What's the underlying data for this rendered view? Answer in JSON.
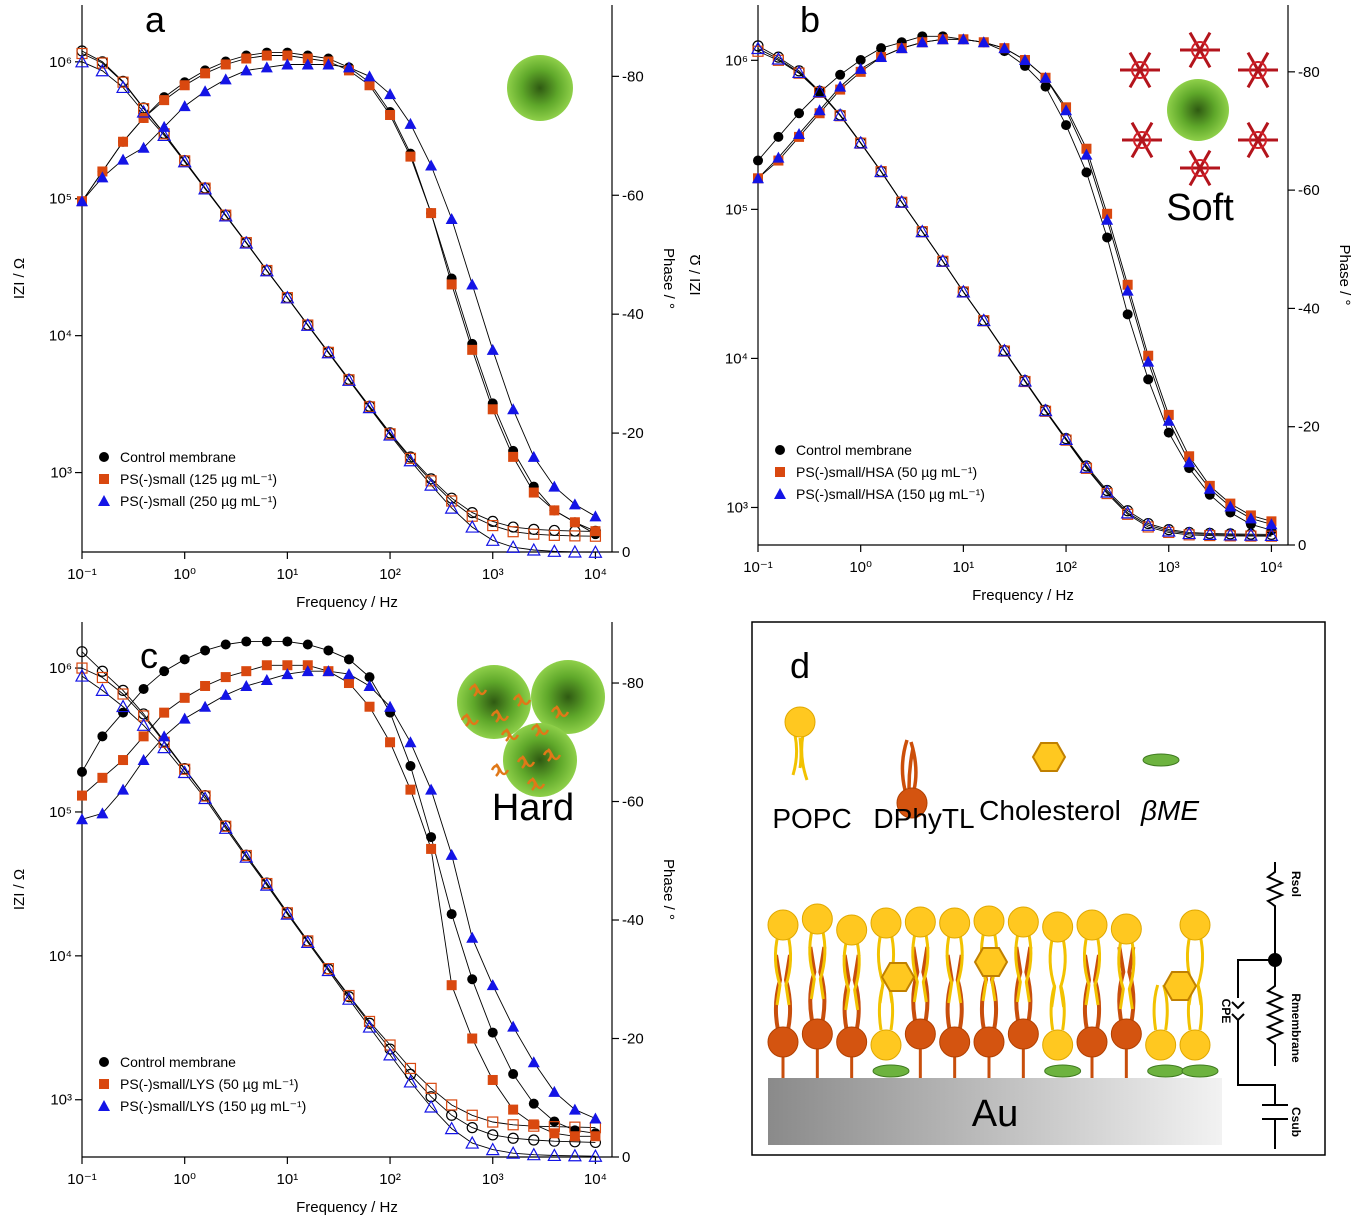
{
  "chart_data": [
    {
      "type": "line",
      "panel_label": "a",
      "xlabel": "Frequency / Hz",
      "ylabel": "IZI / Ω",
      "y2label": "Phase / °",
      "xscale": "log",
      "yscale": "log",
      "legend": "lower left",
      "x": [
        0.1,
        0.158,
        0.251,
        0.398,
        0.631,
        1,
        1.58,
        2.51,
        3.98,
        6.31,
        10,
        15.8,
        25.1,
        39.8,
        63.1,
        100,
        158,
        251,
        398,
        631,
        1000,
        1580,
        2510,
        3980,
        6310,
        10000
      ],
      "xlim": [
        0.1,
        14500
      ],
      "xticks": [
        {
          "value": 0.1,
          "label": "10⁻¹"
        },
        {
          "value": 1,
          "label": "10⁰"
        },
        {
          "value": 10,
          "label": "10¹"
        },
        {
          "value": 100,
          "label": "10²"
        },
        {
          "value": 1000,
          "label": "10³"
        },
        {
          "value": 10000,
          "label": "10⁴"
        }
      ],
      "ylim": [
        263,
        2600000
      ],
      "yticks": [
        {
          "value": 1000,
          "label": "10³"
        },
        {
          "value": 10000,
          "label": "10⁴"
        },
        {
          "value": 100000,
          "label": "10⁵"
        },
        {
          "value": 1000000,
          "label": "10⁶"
        }
      ],
      "y2lim": [
        0,
        -92
      ],
      "y2ticks": [
        0,
        -20,
        -40,
        -60,
        -80
      ],
      "series": [
        {
          "name": "Control membrane",
          "color": "#000000",
          "marker": "circle",
          "magnitude": [
            1200000,
            1000000,
            720000,
            460000,
            300000,
            190000,
            120000,
            76000,
            48000,
            30000,
            19000,
            12000,
            7600,
            4800,
            3050,
            1950,
            1300,
            900,
            650,
            510,
            440,
            400,
            385,
            378,
            374,
            372
          ],
          "phase": [
            -59,
            -64,
            -69,
            -73,
            -76.5,
            -79,
            -81,
            -82.5,
            -83.5,
            -84,
            -84,
            -83.5,
            -83,
            -81.5,
            -79,
            -74,
            -67,
            -57,
            -46,
            -35,
            -25,
            -17,
            -11,
            -7,
            -5,
            -3
          ]
        },
        {
          "name": "PS(-)small (125 µg mL⁻¹)",
          "color": "#d9480f",
          "marker": "square",
          "magnitude": [
            1150000,
            980000,
            710000,
            455000,
            298000,
            189000,
            119500,
            75800,
            47800,
            29900,
            18950,
            11950,
            7550,
            4760,
            3020,
            1920,
            1270,
            870,
            620,
            480,
            410,
            370,
            355,
            348,
            345,
            343
          ],
          "phase": [
            -59,
            -64,
            -69,
            -73,
            -76,
            -78.5,
            -80.5,
            -82,
            -83,
            -83.5,
            -83.5,
            -83,
            -82.5,
            -81,
            -78.5,
            -73.5,
            -66.5,
            -57,
            -45,
            -34,
            -24,
            -16,
            -10,
            -7,
            -5,
            -3.5
          ]
        },
        {
          "name": "PS(-)small (250 µg mL⁻¹)",
          "color": "#1414e6",
          "marker": "triangle",
          "magnitude": [
            1000000,
            860000,
            650000,
            430000,
            290000,
            186000,
            118000,
            75000,
            47500,
            29800,
            18900,
            11900,
            7500,
            4720,
            2980,
            1880,
            1220,
            810,
            550,
            400,
            320,
            285,
            272,
            266,
            263,
            262
          ],
          "phase": [
            -59,
            -63,
            -66,
            -68,
            -71.5,
            -75,
            -77.5,
            -79.5,
            -81,
            -81.5,
            -82,
            -82,
            -82,
            -81.5,
            -80,
            -77,
            -72,
            -65,
            -56,
            -45,
            -34,
            -24,
            -16,
            -11,
            -8,
            -6
          ]
        }
      ]
    },
    {
      "type": "line",
      "panel_label": "b",
      "annotation": "Soft",
      "xlabel": "Frequency / Hz",
      "ylabel": "IZI / Ω",
      "y2label": "Phase / °",
      "xscale": "log",
      "yscale": "log",
      "legend": "lower left",
      "x": [
        0.1,
        0.158,
        0.251,
        0.398,
        0.631,
        1,
        1.58,
        2.51,
        3.98,
        6.31,
        10,
        15.8,
        25.1,
        39.8,
        63.1,
        100,
        158,
        251,
        398,
        631,
        1000,
        1580,
        2510,
        3980,
        6310,
        10000
      ],
      "xlim": [
        0.1,
        14500
      ],
      "xticks": [
        {
          "value": 0.1,
          "label": "10⁻¹"
        },
        {
          "value": 1,
          "label": "10⁰"
        },
        {
          "value": 10,
          "label": "10¹"
        },
        {
          "value": 100,
          "label": "10²"
        },
        {
          "value": 1000,
          "label": "10³"
        },
        {
          "value": 10000,
          "label": "10⁴"
        }
      ],
      "ylim": [
        560,
        2350000
      ],
      "yticks": [
        {
          "value": 1000,
          "label": "10³"
        },
        {
          "value": 10000,
          "label": "10⁴"
        },
        {
          "value": 100000,
          "label": "10⁵"
        },
        {
          "value": 1000000,
          "label": "10⁶"
        }
      ],
      "y2lim": [
        0,
        -91.3
      ],
      "y2ticks": [
        0,
        -20,
        -40,
        -60,
        -80
      ],
      "series": [
        {
          "name": "Control membrane",
          "color": "#000000",
          "marker": "circle",
          "magnitude": [
            1250000,
            1050000,
            850000,
            620000,
            430000,
            280000,
            180000,
            112000,
            71000,
            45000,
            28000,
            18000,
            11300,
            7100,
            4500,
            2900,
            1900,
            1300,
            950,
            780,
            710,
            680,
            670,
            665,
            662,
            660
          ],
          "phase": [
            -65,
            -69,
            -73,
            -76.5,
            -79.5,
            -82,
            -84,
            -85,
            -86,
            -86,
            -85.5,
            -85,
            -83.5,
            -81,
            -77.5,
            -71,
            -63,
            -52,
            -39,
            -28,
            -19,
            -13,
            -8.5,
            -5.5,
            -3.5,
            -2.5
          ]
        },
        {
          "name": "PS(-)small/HSA (50 µg mL⁻¹)",
          "color": "#d9480f",
          "marker": "square",
          "magnitude": [
            1150000,
            1000000,
            820000,
            610000,
            425000,
            278000,
            179000,
            111500,
            70800,
            44800,
            27900,
            17900,
            11200,
            7000,
            4420,
            2830,
            1830,
            1240,
            900,
            740,
            680,
            655,
            648,
            645,
            643,
            642
          ],
          "phase": [
            -62,
            -65,
            -69,
            -73,
            -77,
            -80,
            -82.5,
            -84,
            -85,
            -85.5,
            -85.5,
            -85,
            -84,
            -82,
            -79,
            -74,
            -67,
            -56,
            -44,
            -32,
            -22,
            -15,
            -10,
            -7,
            -5,
            -4
          ]
        },
        {
          "name": "PS(-)small/HSA (150 µg mL⁻¹)",
          "color": "#1414e6",
          "marker": "triangle",
          "magnitude": [
            1200000,
            1020000,
            830000,
            615000,
            428000,
            279000,
            179500,
            111800,
            70900,
            44900,
            27950,
            17950,
            11250,
            7050,
            4460,
            2860,
            1860,
            1270,
            920,
            760,
            695,
            668,
            660,
            655,
            652,
            650
          ],
          "phase": [
            -62,
            -65.5,
            -69.5,
            -73.5,
            -77.5,
            -80.5,
            -82.5,
            -84,
            -85,
            -85.5,
            -85.5,
            -85,
            -84,
            -82,
            -79,
            -73.5,
            -66,
            -55,
            -43,
            -31,
            -21,
            -14,
            -9.5,
            -6.5,
            -4.5,
            -3.5
          ]
        }
      ]
    },
    {
      "type": "line",
      "panel_label": "c",
      "annotation": "Hard",
      "xlabel": "Frequency / Hz",
      "ylabel": "IZI / Ω",
      "y2label": "Phase / °",
      "xscale": "log",
      "yscale": "log",
      "legend": "lower left",
      "x": [
        0.1,
        0.158,
        0.251,
        0.398,
        0.631,
        1,
        1.58,
        2.51,
        3.98,
        6.31,
        10,
        15.8,
        25.1,
        39.8,
        63.1,
        100,
        158,
        251,
        398,
        631,
        1000,
        1580,
        2510,
        3980,
        6310,
        10000
      ],
      "xlim": [
        0.1,
        14500
      ],
      "xticks": [
        {
          "value": 0.1,
          "label": "10⁻¹"
        },
        {
          "value": 1,
          "label": "10⁰"
        },
        {
          "value": 10,
          "label": "10¹"
        },
        {
          "value": 100,
          "label": "10²"
        },
        {
          "value": 1000,
          "label": "10³"
        },
        {
          "value": 10000,
          "label": "10⁴"
        }
      ],
      "ylim": [
        400,
        2090000
      ],
      "yticks": [
        {
          "value": 1000,
          "label": "10³"
        },
        {
          "value": 10000,
          "label": "10⁴"
        },
        {
          "value": 100000,
          "label": "10⁵"
        },
        {
          "value": 1000000,
          "label": "10⁶"
        }
      ],
      "y2lim": [
        0,
        -90.3
      ],
      "y2ticks": [
        0,
        -20,
        -40,
        -60,
        -80
      ],
      "series": [
        {
          "name": "Control membrane",
          "color": "#000000",
          "marker": "circle",
          "magnitude": [
            1300000,
            950000,
            700000,
            480000,
            310000,
            200000,
            130000,
            80000,
            50000,
            32000,
            20000,
            12700,
            8100,
            5200,
            3400,
            2250,
            1500,
            1050,
            780,
            640,
            570,
            540,
            525,
            515,
            510,
            505
          ],
          "phase": [
            -65,
            -71,
            -75,
            -79,
            -82,
            -84,
            -85.5,
            -86.5,
            -87,
            -87,
            -87,
            -86.5,
            -85.5,
            -84,
            -81,
            -75,
            -66,
            -54,
            -41,
            -30,
            -21,
            -14,
            -9,
            -6,
            -4.5,
            -4
          ]
        },
        {
          "name": "PS(-)small/LYS (50 µg mL⁻¹)",
          "color": "#d9480f",
          "marker": "square",
          "magnitude": [
            1000000,
            860000,
            660000,
            465000,
            305000,
            198000,
            129000,
            79500,
            49800,
            31800,
            19900,
            12700,
            8150,
            5300,
            3500,
            2400,
            1650,
            1200,
            920,
            780,
            700,
            670,
            655,
            650,
            645,
            640
          ],
          "phase": [
            -61,
            -64,
            -67,
            -71,
            -75,
            -77.5,
            -79.5,
            -81,
            -82,
            -83,
            -83,
            -83,
            -82,
            -80,
            -76,
            -70,
            -62,
            -52,
            -29,
            -20,
            -13,
            -8,
            -5.5,
            -4,
            -3.5,
            -3.5
          ]
        },
        {
          "name": "PS(-)small/LYS (150 µg mL⁻¹)",
          "color": "#1414e6",
          "marker": "triangle",
          "magnitude": [
            880000,
            700000,
            540000,
            400000,
            280000,
            188000,
            124000,
            77000,
            48500,
            31000,
            19500,
            12400,
            7900,
            5000,
            3200,
            2050,
            1330,
            890,
            630,
            500,
            450,
            425,
            415,
            410,
            408,
            405
          ],
          "phase": [
            -57,
            -58,
            -62,
            -67,
            -71,
            -74,
            -76,
            -78,
            -79.5,
            -80.5,
            -81.5,
            -82,
            -82,
            -81.5,
            -79.5,
            -76,
            -70,
            -62,
            -51,
            -37,
            -29,
            -22,
            -16,
            -11,
            -8,
            -6.5
          ]
        }
      ]
    }
  ],
  "diagram": {
    "label": "d",
    "components": [
      "POPC",
      "DPhyTL",
      "Cholesterol",
      "βME"
    ],
    "substrate": "Au",
    "circuit": [
      "Rsol",
      "Rmembrane",
      "CPE",
      "Csub"
    ]
  }
}
